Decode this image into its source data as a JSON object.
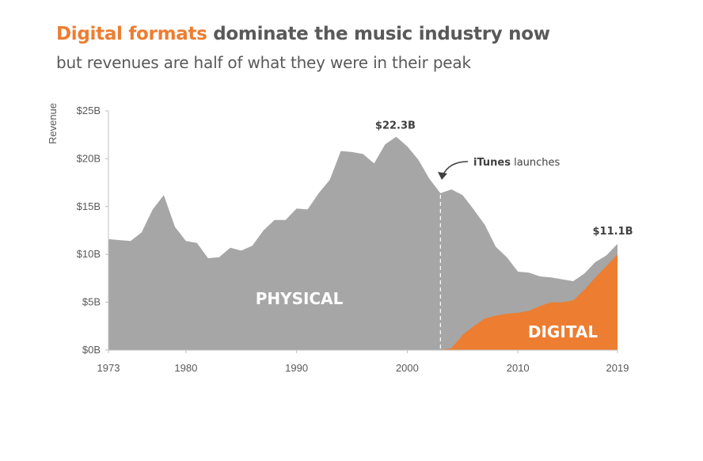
{
  "title": {
    "highlight": "Digital formats",
    "rest": " dominate the music industry now"
  },
  "subtitle": "but revenues are half of what they were in their peak",
  "colors": {
    "physical": "#A6A6A6",
    "digital": "#ED7D31",
    "text": "#595959",
    "annotation": "#404040"
  },
  "annotations": {
    "peak_label": "$22.3B",
    "end_label": "$11.1B",
    "itunes_bold": "iTunes",
    "itunes_rest": " launches",
    "physical_label": "PHYSICAL",
    "digital_label": "DIGITAL"
  },
  "chart_data": {
    "type": "area",
    "stacked": true,
    "ylabel": "Revenue",
    "xlim": [
      1973,
      2019
    ],
    "ylim": [
      0,
      25
    ],
    "y_ticks": [
      "$0B",
      "$5B",
      "$10B",
      "$15B",
      "$20B",
      "$25B"
    ],
    "x_ticks": [
      "1973",
      "1980",
      "1990",
      "2000",
      "2010",
      "2019"
    ],
    "grid": false,
    "events": [
      {
        "x": 2003,
        "label": "iTunes launches"
      }
    ],
    "x": [
      1973,
      1974,
      1975,
      1976,
      1977,
      1978,
      1979,
      1980,
      1981,
      1982,
      1983,
      1984,
      1985,
      1986,
      1987,
      1988,
      1989,
      1990,
      1991,
      1992,
      1993,
      1994,
      1995,
      1996,
      1997,
      1998,
      1999,
      2000,
      2001,
      2002,
      2003,
      2004,
      2005,
      2006,
      2007,
      2008,
      2009,
      2010,
      2011,
      2012,
      2013,
      2014,
      2015,
      2016,
      2017,
      2018,
      2019
    ],
    "series": [
      {
        "name": "PHYSICAL",
        "values": [
          11.6,
          11.5,
          11.4,
          12.3,
          14.7,
          16.2,
          12.9,
          11.4,
          11.2,
          9.6,
          9.7,
          10.7,
          10.4,
          10.9,
          12.5,
          13.6,
          13.6,
          14.8,
          14.7,
          16.4,
          17.8,
          20.8,
          20.7,
          20.5,
          19.5,
          21.5,
          22.3,
          21.3,
          19.9,
          17.9,
          16.4,
          16.6,
          14.6,
          12.2,
          9.8,
          7.2,
          5.9,
          4.3,
          4.0,
          3.1,
          2.6,
          2.4,
          2.0,
          1.7,
          1.6,
          1.1,
          1.1
        ]
      },
      {
        "name": "DIGITAL",
        "values": [
          0,
          0,
          0,
          0,
          0,
          0,
          0,
          0,
          0,
          0,
          0,
          0,
          0,
          0,
          0,
          0,
          0,
          0,
          0,
          0,
          0,
          0,
          0,
          0,
          0,
          0,
          0,
          0,
          0,
          0,
          0,
          0.2,
          1.6,
          2.5,
          3.3,
          3.6,
          3.8,
          3.9,
          4.1,
          4.6,
          5.0,
          5.0,
          5.2,
          6.3,
          7.6,
          8.8,
          10.0
        ]
      }
    ]
  }
}
